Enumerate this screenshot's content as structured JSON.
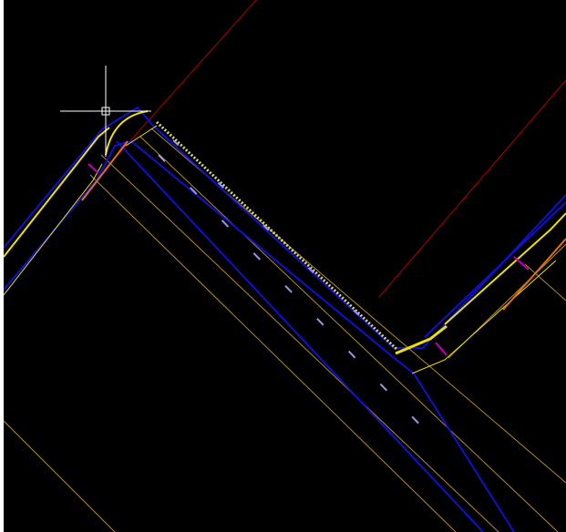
{
  "viewport": {
    "background": "#000000",
    "colors": {
      "red": "#B00000",
      "blue": "#1010D0",
      "yellow": "#F0E000",
      "tan": "#B08A2A",
      "magenta": "#C000C0",
      "orange": "#E07010",
      "pale": "#D8D870",
      "lavender": "#9898E0",
      "crosshair": "#FFFFFF"
    }
  },
  "cursor": {
    "icon": "crosshair-pickbox-icon"
  }
}
